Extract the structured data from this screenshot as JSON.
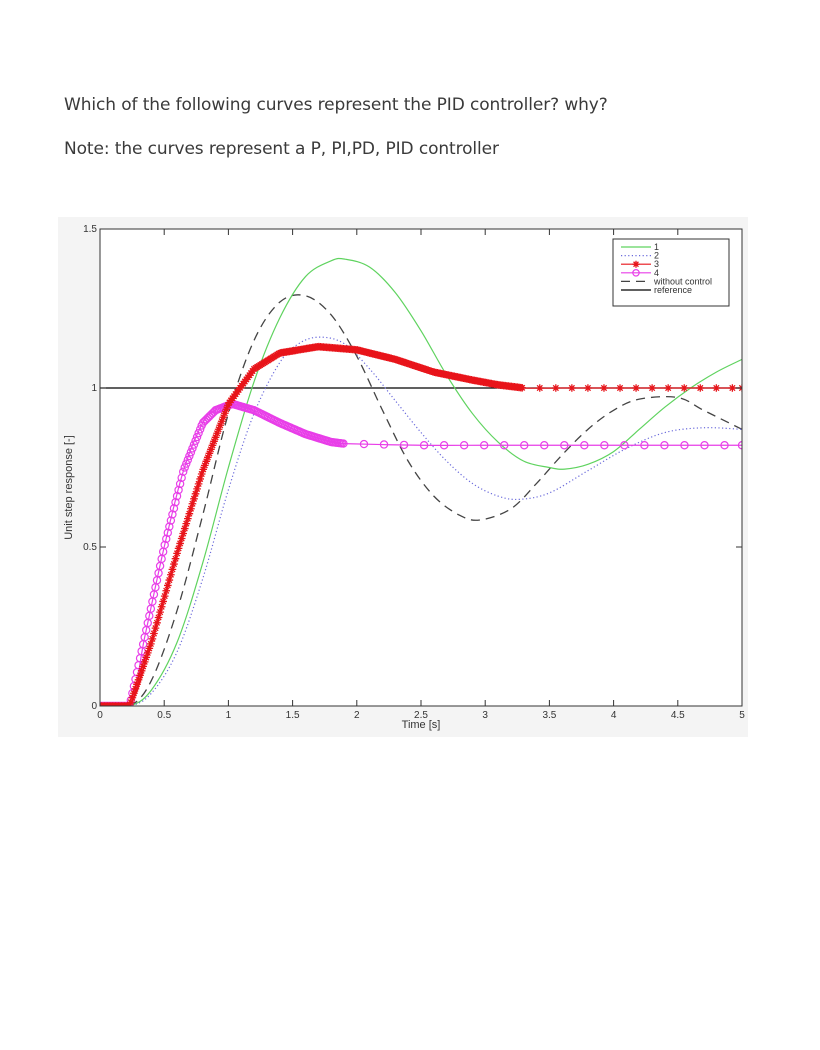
{
  "question": {
    "text": "Which of the following curves represent the PID controller? why?",
    "note": "Note: the curves represent a P, PI,PD, PID controller"
  },
  "chart_data": {
    "type": "line",
    "title": "",
    "xlabel": "Time [s]",
    "ylabel": "Unit step response [-]",
    "xlim": [
      0,
      5
    ],
    "ylim": [
      0,
      1.5
    ],
    "xticks": [
      0,
      0.5,
      1,
      1.5,
      2,
      2.5,
      3,
      3.5,
      4,
      4.5,
      5
    ],
    "xtick_labels": [
      "0",
      "0.5",
      "1",
      "1.5",
      "2",
      "2.5",
      "3",
      "3.5",
      "4",
      "4.5",
      "5"
    ],
    "yticks": [
      0,
      0.5,
      1,
      1.5
    ],
    "ytick_labels": [
      "0",
      "0.5",
      "1",
      "1.5"
    ],
    "grid": false,
    "legend_position": "upper right",
    "series": [
      {
        "name": "1",
        "color": "#5fd35f",
        "style": "solid",
        "marker": "none",
        "x": [
          0,
          0.23,
          0.4,
          0.6,
          0.8,
          1.0,
          1.2,
          1.4,
          1.6,
          1.8,
          1.91,
          2.1,
          2.3,
          2.5,
          2.7,
          2.9,
          3.1,
          3.3,
          3.5,
          3.62,
          3.8,
          4.0,
          4.2,
          4.4,
          4.6,
          4.8,
          5.0
        ],
        "y": [
          0,
          0,
          0.05,
          0.2,
          0.45,
          0.75,
          1.02,
          1.22,
          1.35,
          1.4,
          1.405,
          1.38,
          1.3,
          1.18,
          1.04,
          0.92,
          0.83,
          0.77,
          0.75,
          0.745,
          0.76,
          0.8,
          0.87,
          0.94,
          1.0,
          1.05,
          1.09
        ]
      },
      {
        "name": "2",
        "color": "#6a6adb",
        "style": "dotted",
        "marker": "none",
        "x": [
          0,
          0.23,
          0.4,
          0.6,
          0.8,
          1.0,
          1.2,
          1.4,
          1.55,
          1.71,
          1.9,
          2.1,
          2.3,
          2.5,
          2.7,
          2.9,
          3.1,
          3.27,
          3.5,
          3.8,
          4.1,
          4.4,
          4.7,
          5.0
        ],
        "y": [
          0,
          0,
          0.04,
          0.17,
          0.4,
          0.68,
          0.92,
          1.08,
          1.14,
          1.16,
          1.14,
          1.06,
          0.96,
          0.86,
          0.77,
          0.7,
          0.66,
          0.65,
          0.67,
          0.74,
          0.81,
          0.86,
          0.875,
          0.87
        ]
      },
      {
        "name": "3",
        "color": "#e8141a",
        "style": "solid",
        "marker": "star",
        "x": [
          0,
          0.23,
          0.4,
          0.6,
          0.8,
          1.0,
          1.2,
          1.4,
          1.7,
          2.0,
          2.3,
          2.6,
          2.9,
          3.1,
          3.3,
          3.6,
          4.0,
          4.5,
          5.0
        ],
        "y": [
          0,
          0,
          0.2,
          0.48,
          0.74,
          0.95,
          1.06,
          1.11,
          1.13,
          1.12,
          1.09,
          1.05,
          1.025,
          1.01,
          1.0,
          1.0,
          1.0,
          1.0,
          1.0
        ]
      },
      {
        "name": "4",
        "color": "#e83ee8",
        "style": "solid",
        "marker": "circle",
        "x": [
          0,
          0.23,
          0.35,
          0.5,
          0.65,
          0.8,
          0.9,
          1.03,
          1.2,
          1.4,
          1.6,
          1.8,
          1.9,
          2.5,
          3.0,
          3.5,
          4.0,
          4.5,
          5.0
        ],
        "y": [
          0,
          0,
          0.22,
          0.5,
          0.74,
          0.89,
          0.93,
          0.95,
          0.93,
          0.89,
          0.855,
          0.83,
          0.825,
          0.82,
          0.82,
          0.82,
          0.82,
          0.82,
          0.82
        ]
      },
      {
        "name": "without control",
        "color": "#444444",
        "style": "dashed",
        "marker": "none",
        "x": [
          0,
          0.23,
          0.4,
          0.6,
          0.8,
          1.0,
          1.2,
          1.4,
          1.6,
          1.8,
          2.0,
          2.2,
          2.4,
          2.6,
          2.8,
          2.96,
          3.2,
          3.4,
          3.6,
          3.8,
          4.0,
          4.2,
          4.5,
          4.7,
          5.0
        ],
        "y": [
          0,
          0,
          0.08,
          0.3,
          0.6,
          0.92,
          1.15,
          1.27,
          1.29,
          1.23,
          1.1,
          0.93,
          0.77,
          0.66,
          0.6,
          0.585,
          0.62,
          0.7,
          0.79,
          0.87,
          0.93,
          0.965,
          0.97,
          0.93,
          0.87
        ]
      },
      {
        "name": "reference",
        "color": "#000000",
        "style": "solid",
        "marker": "none",
        "x": [
          0,
          5
        ],
        "y": [
          1,
          1
        ]
      }
    ],
    "legend": [
      "1",
      "2",
      "3",
      "4",
      "without control",
      "reference"
    ]
  }
}
